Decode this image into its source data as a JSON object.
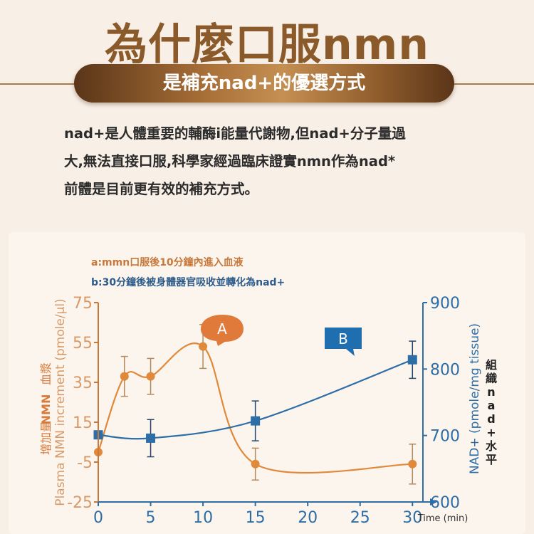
{
  "header": {
    "title": "為什麼口服nmn",
    "banner": "是補充nad+的優選方式"
  },
  "paragraph": {
    "lines": [
      "nad+是人體重要的輔酶i能量代謝物,但nad+分子量過",
      "大,無法直接口服,科學家經過臨床證實nmn作為nad*",
      "前體是目前更有效的補充方式。"
    ]
  },
  "colors": {
    "brand_brown": "#8a5a2a",
    "series_a": "#e0893a",
    "series_b": "#2e6ea6",
    "left_axis": "#c8783a",
    "right_axis": "#2e6ea6",
    "callout_a": "#e07a3a",
    "callout_b": "#1f6fb0"
  },
  "chart_data": {
    "type": "line",
    "annotations": {
      "a": "a:mmn口服後10分鐘內進入血液",
      "b": "b:30分鐘後被身體器官吸收並轉化為nad+",
      "callout_a": "A",
      "callout_b": "B"
    },
    "xlabel": "Time (min)",
    "x_ticks": [
      "0",
      "5",
      "10",
      "15",
      "20",
      "25",
      "30"
    ],
    "xlim": [
      0,
      31
    ],
    "y_left": {
      "label_cn_1": "血漿",
      "label_cn_2": "NMN",
      "label_cn_3": "增加量",
      "label_en": "Plasma NMN increment (pmole/μl)",
      "ticks": [
        "75",
        "55",
        "35",
        "15",
        "-5",
        "-25"
      ],
      "lim": [
        -25,
        75
      ]
    },
    "y_right": {
      "label_en": "NAD+ (pmole/mg tissue)",
      "label_cn": "組織nad+水平",
      "ticks": [
        "900",
        "800",
        "700",
        "600"
      ],
      "lim": [
        600,
        900
      ]
    },
    "series": [
      {
        "axis": "left",
        "points": [
          {
            "x": 0,
            "y": 0,
            "err": 0
          },
          {
            "x": 2.5,
            "y": 38,
            "err": 10
          },
          {
            "x": 5,
            "y": 38,
            "err": 9
          },
          {
            "x": 10,
            "y": 53,
            "err": 11
          },
          {
            "x": 15,
            "y": -6,
            "err": 8
          },
          {
            "x": 30,
            "y": -6,
            "err": 10
          }
        ]
      },
      {
        "axis": "right",
        "points": [
          {
            "x": 0,
            "y": 701,
            "err": 0
          },
          {
            "x": 5,
            "y": 696,
            "err": 28
          },
          {
            "x": 15,
            "y": 722,
            "err": 30
          },
          {
            "x": 30,
            "y": 814,
            "err": 28
          }
        ]
      }
    ]
  }
}
